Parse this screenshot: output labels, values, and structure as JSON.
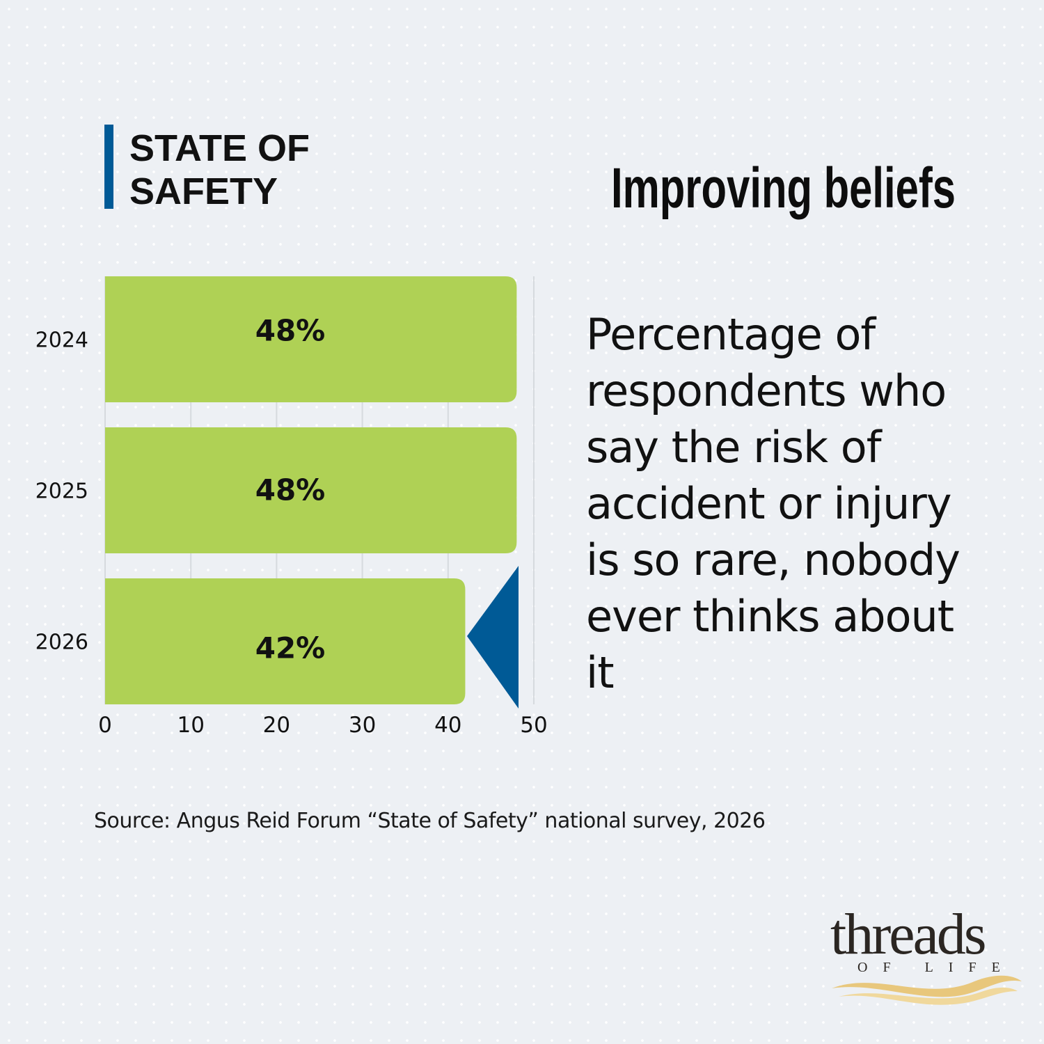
{
  "header": "STATE OF SAFETY",
  "logo": {
    "name": "threads",
    "tagline": "OF LIFE"
  },
  "chart_data": {
    "type": "bar",
    "orientation": "horizontal",
    "title": "Improving beliefs",
    "subtitle": "Percentage of respondents who say the risk of accident or injury is so rare, nobody ever thinks about it",
    "source": "Source: Angus Reid Forum “State of Safety” national survey, 2026",
    "categories": [
      "2024",
      "2025",
      "2026"
    ],
    "values": [
      48,
      48,
      42
    ],
    "value_labels": [
      "48%",
      "48%",
      "42%"
    ],
    "color": "#afd155",
    "xlim": [
      0,
      50
    ],
    "xticks": [
      0,
      10,
      20,
      30,
      40,
      50
    ],
    "grid": true
  }
}
